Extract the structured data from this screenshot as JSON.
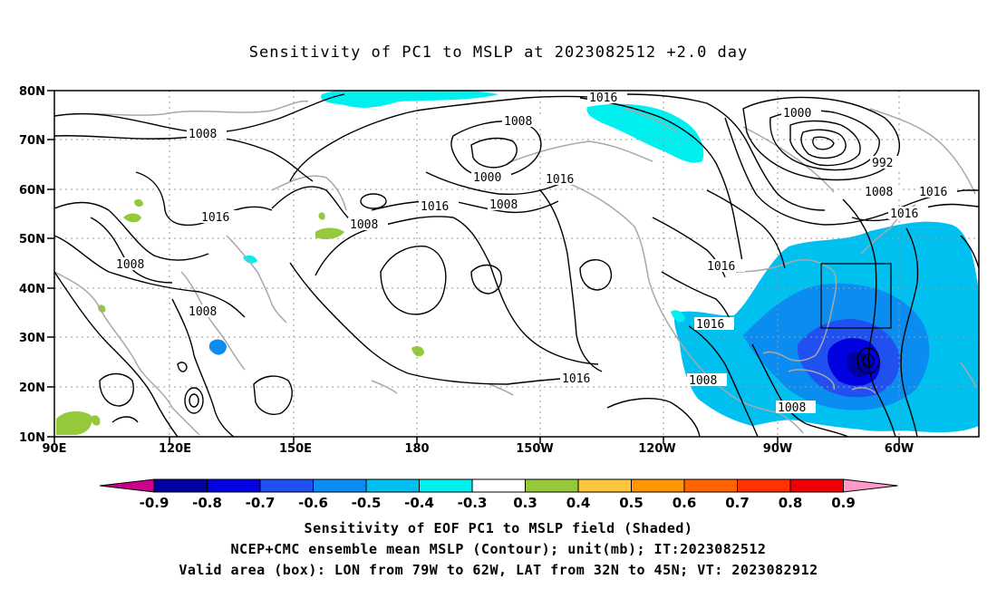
{
  "title": "Sensitivity of PC1 to MSLP at 2023082512 +2.0 day",
  "map": {
    "lon_labels": [
      "90E",
      "120E",
      "150E",
      "180",
      "150W",
      "120W",
      "90W",
      "60W"
    ],
    "lat_labels": [
      "80N",
      "70N",
      "60N",
      "50N",
      "40N",
      "30N",
      "20N",
      "10N"
    ],
    "contour_labels": [
      "1016",
      "1008",
      "1000",
      "1016",
      "1008",
      "1008",
      "1016",
      "1008",
      "1016",
      "1008",
      "1008",
      "1000",
      "992",
      "1008",
      "1016",
      "1016",
      "1016",
      "1016",
      "1016",
      "1008",
      "1008"
    ],
    "valid_box": {
      "lon": [
        -79,
        -62
      ],
      "lat": [
        32,
        45
      ]
    },
    "colors": {
      "coast": "#a8a8a8",
      "contour": "#000000",
      "grid": "#9a9a9a"
    }
  },
  "colorbar": {
    "labels": [
      "-0.9",
      "-0.8",
      "-0.7",
      "-0.6",
      "-0.5",
      "-0.4",
      "-0.3",
      "0.3",
      "0.4",
      "0.5",
      "0.6",
      "0.7",
      "0.8",
      "0.9"
    ],
    "colors": [
      "#c8008c",
      "#0000a0",
      "#0000e0",
      "#2050f0",
      "#0a8cf0",
      "#00c0f0",
      "#00f0f0",
      "#ffffff",
      "#96c83c",
      "#ffc83c",
      "#ff9600",
      "#ff6400",
      "#ff3200",
      "#f00000",
      "#ff9bc8"
    ]
  },
  "captions": {
    "line1": "Sensitivity of EOF PC1 to MSLP field (Shaded)",
    "line2": "NCEP+CMC ensemble mean MSLP (Contour); unit(mb); IT:2023082512",
    "line3": "Valid area (box): LON from 79W to 62W, LAT from 32N to 45N; VT: 2023082912"
  }
}
